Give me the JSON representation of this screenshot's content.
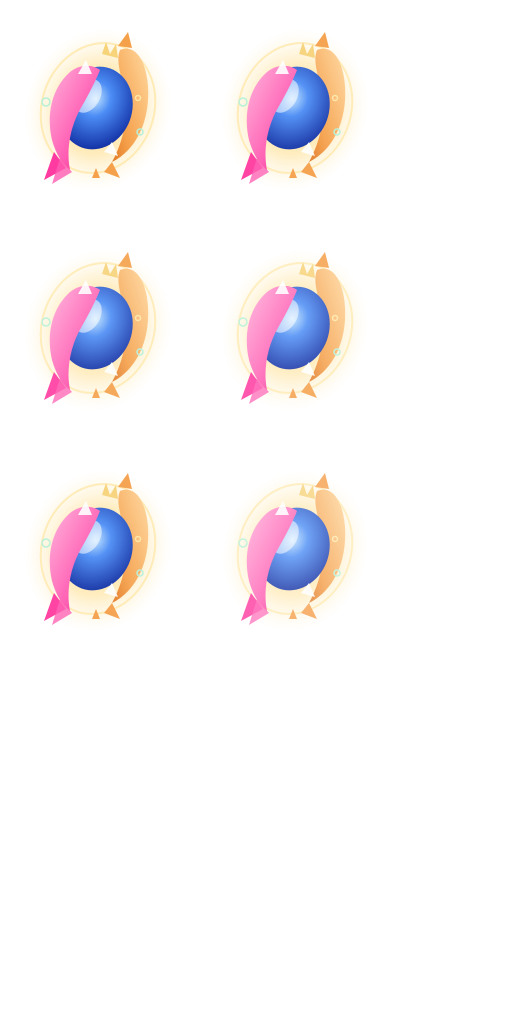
{
  "sprite_sheet": {
    "frame_count": 6,
    "columns": 2,
    "rows": 3,
    "asset": "koi-orb-emblem",
    "colors": {
      "glow": "#ffcf6a",
      "glow_outer": "#fff1c9",
      "orb": "#1f5fe0",
      "orb_light": "#bfe3ff",
      "pink_fish": "#ff3aa0",
      "pink_light": "#ffb2dc",
      "gold_fish": "#f5a04a",
      "gold_light": "#ffd9a0",
      "bubble": "#b6f0d8",
      "crown": "#f7d37a"
    },
    "frames": [
      {
        "index": 1,
        "glow_level": 1.0
      },
      {
        "index": 2,
        "glow_level": 0.95
      },
      {
        "index": 3,
        "glow_level": 0.9
      },
      {
        "index": 4,
        "glow_level": 0.85
      },
      {
        "index": 5,
        "glow_level": 0.95
      },
      {
        "index": 6,
        "glow_level": 0.8
      }
    ]
  }
}
